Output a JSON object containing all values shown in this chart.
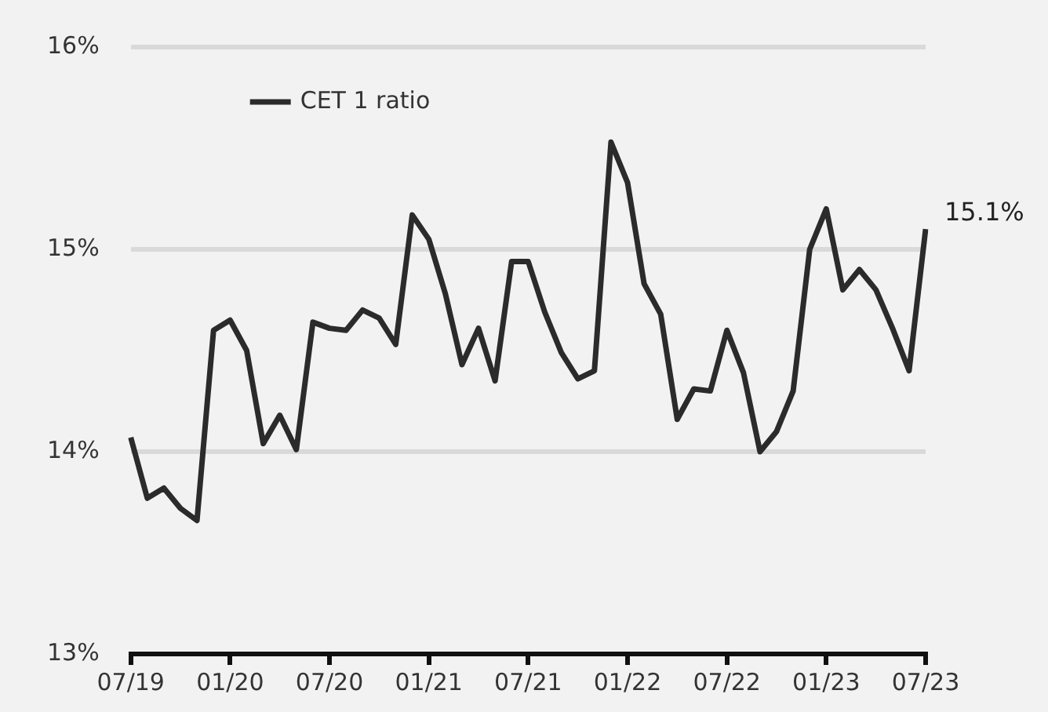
{
  "chart_data": {
    "type": "line",
    "categories": [
      "07/19",
      null,
      null,
      null,
      null,
      null,
      "01/20",
      null,
      null,
      null,
      null,
      null,
      "07/20",
      null,
      null,
      null,
      null,
      null,
      "01/21",
      null,
      null,
      null,
      null,
      null,
      "07/21",
      null,
      null,
      null,
      null,
      null,
      "01/22",
      null,
      null,
      null,
      null,
      null,
      "07/22",
      null,
      null,
      null,
      null,
      null,
      "01/23",
      null,
      null,
      null,
      null,
      null,
      "07/23"
    ],
    "series": [
      {
        "name": "CET 1 ratio",
        "color": "#2b2b2b",
        "values": [
          14.07,
          13.77,
          13.82,
          13.72,
          13.66,
          14.6,
          14.65,
          14.5,
          14.04,
          14.18,
          14.01,
          14.64,
          14.61,
          14.6,
          14.7,
          14.66,
          14.53,
          15.17,
          15.05,
          14.78,
          14.43,
          14.61,
          14.35,
          14.94,
          14.94,
          14.69,
          14.49,
          14.36,
          14.4,
          15.53,
          15.33,
          14.83,
          14.68,
          14.16,
          14.31,
          14.3,
          14.6,
          14.39,
          14.0,
          14.1,
          14.3,
          15.0,
          15.2,
          14.8,
          14.9,
          14.8,
          14.61,
          14.4,
          15.1
        ]
      }
    ],
    "ylim": [
      13,
      16
    ],
    "yticks": [
      {
        "value": 13,
        "label": "13%"
      },
      {
        "value": 14,
        "label": "14%"
      },
      {
        "value": 15,
        "label": "15%"
      },
      {
        "value": 16,
        "label": "16%"
      }
    ],
    "grid": "y",
    "legend": "top left",
    "marker": "none",
    "line_style": "solid",
    "annotations": [
      {
        "text": "15.1%",
        "x": "07/23",
        "y": 15.1
      }
    ]
  }
}
